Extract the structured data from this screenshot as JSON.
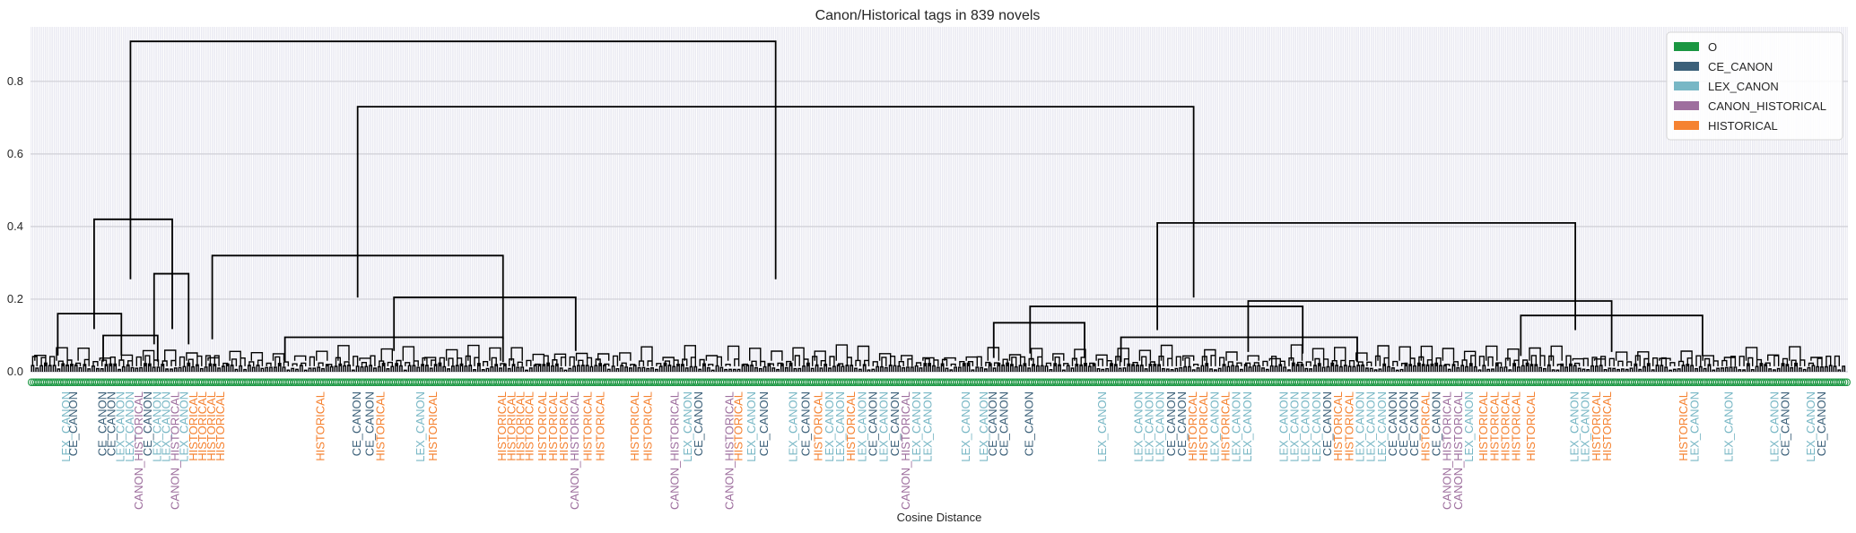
{
  "chart_data": {
    "type": "dendrogram",
    "title": "Canon/Historical tags in 839 novels",
    "xlabel": "Cosine Distance",
    "ylabel": "",
    "ylim": [
      0,
      0.95
    ],
    "yticks": [
      0.0,
      0.2,
      0.4,
      0.6,
      0.8
    ],
    "tick_labels": [
      "0.0",
      "0.2",
      "0.4",
      "0.6",
      "0.8"
    ],
    "grid": true,
    "legend_position": "top-right",
    "legend": [
      {
        "label": "O",
        "color": "#1a9641"
      },
      {
        "label": "CE_CANON",
        "color": "#3b6079"
      },
      {
        "label": "LEX_CANON",
        "color": "#78b7c5"
      },
      {
        "label": "CANON_HISTORICAL",
        "color": "#9e6f9e"
      },
      {
        "label": "HISTORICAL",
        "color": "#f58231"
      }
    ],
    "n_leaves": 839,
    "marker_label": "O",
    "major_merges": [
      {
        "left": 0.055,
        "right": 0.41,
        "height": 0.91
      },
      {
        "left": 0.18,
        "right": 0.64,
        "height": 0.73
      },
      {
        "left": 0.035,
        "right": 0.078,
        "height": 0.42
      },
      {
        "left": 0.62,
        "right": 0.85,
        "height": 0.41
      },
      {
        "left": 0.1,
        "right": 0.26,
        "height": 0.32
      },
      {
        "left": 0.068,
        "right": 0.087,
        "height": 0.27
      },
      {
        "left": 0.2,
        "right": 0.3,
        "height": 0.205
      },
      {
        "left": 0.67,
        "right": 0.87,
        "height": 0.195
      },
      {
        "left": 0.55,
        "right": 0.7,
        "height": 0.18
      },
      {
        "left": 0.82,
        "right": 0.92,
        "height": 0.155
      },
      {
        "left": 0.015,
        "right": 0.05,
        "height": 0.16
      },
      {
        "left": 0.53,
        "right": 0.58,
        "height": 0.135
      },
      {
        "left": 0.04,
        "right": 0.07,
        "height": 0.1
      },
      {
        "left": 0.14,
        "right": 0.26,
        "height": 0.095
      },
      {
        "left": 0.6,
        "right": 0.73,
        "height": 0.095
      }
    ],
    "vertical_labels": [
      {
        "pos": 0.02,
        "text": "LEX_CANON",
        "tag": "LEX_CANON"
      },
      {
        "pos": 0.024,
        "text": "CE_CANON",
        "tag": "CE_CANON"
      },
      {
        "pos": 0.04,
        "text": "CE_CANON",
        "tag": "CE_CANON"
      },
      {
        "pos": 0.045,
        "text": "CE_CANON",
        "tag": "CE_CANON"
      },
      {
        "pos": 0.05,
        "text": "LEX_CANON",
        "tag": "LEX_CANON"
      },
      {
        "pos": 0.055,
        "text": "LEX_CANON",
        "tag": "LEX_CANON"
      },
      {
        "pos": 0.06,
        "text": "CANON_HISTORICAL",
        "tag": "CANON_HISTORICAL"
      },
      {
        "pos": 0.065,
        "text": "CE_CANON",
        "tag": "CE_CANON"
      },
      {
        "pos": 0.07,
        "text": "LEX_CANON",
        "tag": "LEX_CANON"
      },
      {
        "pos": 0.075,
        "text": "LEX_CANON",
        "tag": "LEX_CANON"
      },
      {
        "pos": 0.08,
        "text": "CANON_HISTORICAL",
        "tag": "CANON_HISTORICAL"
      },
      {
        "pos": 0.085,
        "text": "LEX_CANON",
        "tag": "LEX_CANON"
      },
      {
        "pos": 0.09,
        "text": "HISTORICAL",
        "tag": "HISTORICAL"
      },
      {
        "pos": 0.095,
        "text": "HISTORICAL",
        "tag": "HISTORICAL"
      },
      {
        "pos": 0.1,
        "text": "HISTORICAL",
        "tag": "HISTORICAL"
      },
      {
        "pos": 0.105,
        "text": "HISTORICAL",
        "tag": "HISTORICAL"
      },
      {
        "pos": 0.16,
        "text": "HISTORICAL",
        "tag": "HISTORICAL"
      },
      {
        "pos": 0.18,
        "text": "CE_CANON",
        "tag": "CE_CANON"
      },
      {
        "pos": 0.187,
        "text": "CE_CANON",
        "tag": "CE_CANON"
      },
      {
        "pos": 0.193,
        "text": "HISTORICAL",
        "tag": "HISTORICAL"
      },
      {
        "pos": 0.215,
        "text": "LEX_CANON",
        "tag": "LEX_CANON"
      },
      {
        "pos": 0.222,
        "text": "HISTORICAL",
        "tag": "HISTORICAL"
      },
      {
        "pos": 0.26,
        "text": "HISTORICAL",
        "tag": "HISTORICAL"
      },
      {
        "pos": 0.265,
        "text": "HISTORICAL",
        "tag": "HISTORICAL"
      },
      {
        "pos": 0.27,
        "text": "HISTORICAL",
        "tag": "HISTORICAL"
      },
      {
        "pos": 0.275,
        "text": "HISTORICAL",
        "tag": "HISTORICAL"
      },
      {
        "pos": 0.282,
        "text": "HISTORICAL",
        "tag": "HISTORICAL"
      },
      {
        "pos": 0.288,
        "text": "HISTORICAL",
        "tag": "HISTORICAL"
      },
      {
        "pos": 0.294,
        "text": "HISTORICAL",
        "tag": "HISTORICAL"
      },
      {
        "pos": 0.3,
        "text": "CANON_HISTORICAL",
        "tag": "CANON_HISTORICAL"
      },
      {
        "pos": 0.307,
        "text": "HISTORICAL",
        "tag": "HISTORICAL"
      },
      {
        "pos": 0.314,
        "text": "HISTORICAL",
        "tag": "HISTORICAL"
      },
      {
        "pos": 0.333,
        "text": "HISTORICAL",
        "tag": "HISTORICAL"
      },
      {
        "pos": 0.34,
        "text": "HISTORICAL",
        "tag": "HISTORICAL"
      },
      {
        "pos": 0.355,
        "text": "CANON_HISTORICAL",
        "tag": "CANON_HISTORICAL"
      },
      {
        "pos": 0.362,
        "text": "LEX_CANON",
        "tag": "LEX_CANON"
      },
      {
        "pos": 0.368,
        "text": "CE_CANON",
        "tag": "CE_CANON"
      },
      {
        "pos": 0.385,
        "text": "CANON_HISTORICAL",
        "tag": "CANON_HISTORICAL"
      },
      {
        "pos": 0.39,
        "text": "HISTORICAL",
        "tag": "HISTORICAL"
      },
      {
        "pos": 0.397,
        "text": "LEX_CANON",
        "tag": "LEX_CANON"
      },
      {
        "pos": 0.404,
        "text": "CE_CANON",
        "tag": "CE_CANON"
      },
      {
        "pos": 0.42,
        "text": "LEX_CANON",
        "tag": "LEX_CANON"
      },
      {
        "pos": 0.427,
        "text": "CE_CANON",
        "tag": "CE_CANON"
      },
      {
        "pos": 0.434,
        "text": "HISTORICAL",
        "tag": "HISTORICAL"
      },
      {
        "pos": 0.44,
        "text": "LEX_CANON",
        "tag": "LEX_CANON"
      },
      {
        "pos": 0.446,
        "text": "LEX_CANON",
        "tag": "LEX_CANON"
      },
      {
        "pos": 0.452,
        "text": "HISTORICAL",
        "tag": "HISTORICAL"
      },
      {
        "pos": 0.458,
        "text": "LEX_CANON",
        "tag": "LEX_CANON"
      },
      {
        "pos": 0.464,
        "text": "CE_CANON",
        "tag": "CE_CANON"
      },
      {
        "pos": 0.47,
        "text": "LEX_CANON",
        "tag": "LEX_CANON"
      },
      {
        "pos": 0.476,
        "text": "CE_CANON",
        "tag": "CE_CANON"
      },
      {
        "pos": 0.482,
        "text": "CANON_HISTORICAL",
        "tag": "CANON_HISTORICAL"
      },
      {
        "pos": 0.488,
        "text": "LEX_CANON",
        "tag": "LEX_CANON"
      },
      {
        "pos": 0.494,
        "text": "LEX_CANON",
        "tag": "LEX_CANON"
      },
      {
        "pos": 0.515,
        "text": "LEX_CANON",
        "tag": "LEX_CANON"
      },
      {
        "pos": 0.525,
        "text": "LEX_CANON",
        "tag": "LEX_CANON"
      },
      {
        "pos": 0.53,
        "text": "CE_CANON",
        "tag": "CE_CANON"
      },
      {
        "pos": 0.536,
        "text": "CE_CANON",
        "tag": "CE_CANON"
      },
      {
        "pos": 0.55,
        "text": "CE_CANON",
        "tag": "CE_CANON"
      },
      {
        "pos": 0.59,
        "text": "LEX_CANON",
        "tag": "LEX_CANON"
      },
      {
        "pos": 0.61,
        "text": "LEX_CANON",
        "tag": "LEX_CANON"
      },
      {
        "pos": 0.616,
        "text": "LEX_CANON",
        "tag": "LEX_CANON"
      },
      {
        "pos": 0.622,
        "text": "LEX_CANON",
        "tag": "LEX_CANON"
      },
      {
        "pos": 0.628,
        "text": "CE_CANON",
        "tag": "CE_CANON"
      },
      {
        "pos": 0.634,
        "text": "CE_CANON",
        "tag": "CE_CANON"
      },
      {
        "pos": 0.64,
        "text": "HISTORICAL",
        "tag": "HISTORICAL"
      },
      {
        "pos": 0.646,
        "text": "HISTORICAL",
        "tag": "HISTORICAL"
      },
      {
        "pos": 0.652,
        "text": "LEX_CANON",
        "tag": "LEX_CANON"
      },
      {
        "pos": 0.658,
        "text": "HISTORICAL",
        "tag": "HISTORICAL"
      },
      {
        "pos": 0.664,
        "text": "LEX_CANON",
        "tag": "LEX_CANON"
      },
      {
        "pos": 0.67,
        "text": "LEX_CANON",
        "tag": "LEX_CANON"
      },
      {
        "pos": 0.69,
        "text": "LEX_CANON",
        "tag": "LEX_CANON"
      },
      {
        "pos": 0.696,
        "text": "LEX_CANON",
        "tag": "LEX_CANON"
      },
      {
        "pos": 0.702,
        "text": "LEX_CANON",
        "tag": "LEX_CANON"
      },
      {
        "pos": 0.708,
        "text": "LEX_CANON",
        "tag": "LEX_CANON"
      },
      {
        "pos": 0.714,
        "text": "CE_CANON",
        "tag": "CE_CANON"
      },
      {
        "pos": 0.72,
        "text": "HISTORICAL",
        "tag": "HISTORICAL"
      },
      {
        "pos": 0.726,
        "text": "HISTORICAL",
        "tag": "HISTORICAL"
      },
      {
        "pos": 0.732,
        "text": "LEX_CANON",
        "tag": "LEX_CANON"
      },
      {
        "pos": 0.738,
        "text": "LEX_CANON",
        "tag": "LEX_CANON"
      },
      {
        "pos": 0.744,
        "text": "LEX_CANON",
        "tag": "LEX_CANON"
      },
      {
        "pos": 0.75,
        "text": "CE_CANON",
        "tag": "CE_CANON"
      },
      {
        "pos": 0.756,
        "text": "CE_CANON",
        "tag": "CE_CANON"
      },
      {
        "pos": 0.762,
        "text": "CE_CANON",
        "tag": "CE_CANON"
      },
      {
        "pos": 0.768,
        "text": "HISTORICAL",
        "tag": "HISTORICAL"
      },
      {
        "pos": 0.774,
        "text": "CE_CANON",
        "tag": "CE_CANON"
      },
      {
        "pos": 0.78,
        "text": "CANON_HISTORICAL",
        "tag": "CANON_HISTORICAL"
      },
      {
        "pos": 0.786,
        "text": "CANON_HISTORICAL",
        "tag": "CANON_HISTORICAL"
      },
      {
        "pos": 0.792,
        "text": "LEX_CANON",
        "tag": "LEX_CANON"
      },
      {
        "pos": 0.8,
        "text": "HISTORICAL",
        "tag": "HISTORICAL"
      },
      {
        "pos": 0.806,
        "text": "HISTORICAL",
        "tag": "HISTORICAL"
      },
      {
        "pos": 0.812,
        "text": "HISTORICAL",
        "tag": "HISTORICAL"
      },
      {
        "pos": 0.818,
        "text": "HISTORICAL",
        "tag": "HISTORICAL"
      },
      {
        "pos": 0.826,
        "text": "HISTORICAL",
        "tag": "HISTORICAL"
      },
      {
        "pos": 0.85,
        "text": "LEX_CANON",
        "tag": "LEX_CANON"
      },
      {
        "pos": 0.856,
        "text": "LEX_CANON",
        "tag": "LEX_CANON"
      },
      {
        "pos": 0.862,
        "text": "HISTORICAL",
        "tag": "HISTORICAL"
      },
      {
        "pos": 0.868,
        "text": "HISTORICAL",
        "tag": "HISTORICAL"
      },
      {
        "pos": 0.91,
        "text": "HISTORICAL",
        "tag": "HISTORICAL"
      },
      {
        "pos": 0.916,
        "text": "LEX_CANON",
        "tag": "LEX_CANON"
      },
      {
        "pos": 0.935,
        "text": "LEX_CANON",
        "tag": "LEX_CANON"
      },
      {
        "pos": 0.96,
        "text": "LEX_CANON",
        "tag": "LEX_CANON"
      },
      {
        "pos": 0.966,
        "text": "CE_CANON",
        "tag": "CE_CANON"
      },
      {
        "pos": 0.98,
        "text": "LEX_CANON",
        "tag": "LEX_CANON"
      },
      {
        "pos": 0.986,
        "text": "CE_CANON",
        "tag": "CE_CANON"
      }
    ]
  }
}
